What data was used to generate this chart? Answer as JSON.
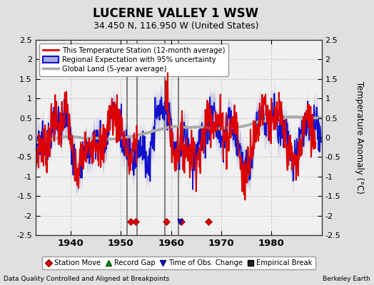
{
  "title": "LUCERNE VALLEY 1 WSW",
  "subtitle": "34.450 N, 116.950 W (United States)",
  "xlabel_left": "Data Quality Controlled and Aligned at Breakpoints",
  "xlabel_right": "Berkeley Earth",
  "ylabel": "Temperature Anomaly (°C)",
  "xlim": [
    1933,
    1990
  ],
  "ylim": [
    -2.5,
    2.5
  ],
  "xticks": [
    1940,
    1950,
    1960,
    1970,
    1980
  ],
  "yticks": [
    -2.5,
    -2.0,
    -1.5,
    -1.0,
    -0.5,
    0.0,
    0.5,
    1.0,
    1.5,
    2.0,
    2.5
  ],
  "ytick_labels": [
    "-2.5",
    "-2",
    "-1.5",
    "-1",
    "-0.5",
    "0",
    "0.5",
    "1",
    "1.5",
    "2",
    "2.5"
  ],
  "fig_bg_color": "#e0e0e0",
  "plot_bg_color": "#f0f0f0",
  "station_color": "#dd0000",
  "regional_color": "#1111cc",
  "regional_fill_color": "#aaaadd",
  "global_color": "#aaaaaa",
  "grid_color": "#cccccc",
  "vertical_line_color": "#666666",
  "vertical_lines": [
    1951.3,
    1953.2,
    1958.8,
    1961.5
  ],
  "station_move_x": [
    1952.0,
    1953.0,
    1959.0,
    1962.0,
    1967.5
  ],
  "time_obs_x": [
    1961.8
  ],
  "legend_labels": [
    "This Temperature Station (12-month average)",
    "Regional Expectation with 95% uncertainty",
    "Global Land (5-year average)"
  ],
  "legend_marker_labels": [
    "Station Move",
    "Record Gap",
    "Time of Obs. Change",
    "Empirical Break"
  ]
}
